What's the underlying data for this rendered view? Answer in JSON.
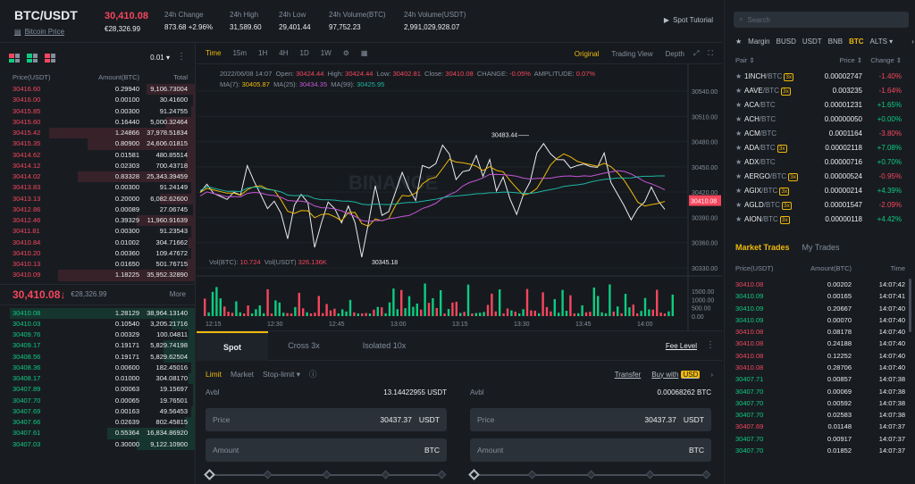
{
  "header": {
    "pair": "BTC/USDT",
    "pair_link": "Bitcoin Price",
    "last_price": "30,410.08",
    "last_price_eur": "€28,326.99",
    "stats": [
      {
        "label": "24h Change",
        "value": "873.68 +2.96%",
        "color": "up"
      },
      {
        "label": "24h High",
        "value": "31,589.60",
        "color": ""
      },
      {
        "label": "24h Low",
        "value": "29,401.44",
        "color": ""
      },
      {
        "label": "24h Volume(BTC)",
        "value": "97,752.23",
        "color": ""
      },
      {
        "label": "24h Volume(USDT)",
        "value": "2,991,029,928.07",
        "color": ""
      }
    ],
    "tutorial": "Spot Tutorial"
  },
  "orderbook": {
    "precision": "0.01",
    "headers": [
      "Price(USDT)",
      "Amount(BTC)",
      "Total"
    ],
    "asks": [
      [
        "30416.60",
        "0.29940",
        "9,106.73004",
        0.25
      ],
      [
        "30416.00",
        "0.00100",
        "30.41600",
        0.01
      ],
      [
        "30415.85",
        "0.00300",
        "91.24755",
        0.02
      ],
      [
        "30415.60",
        "0.16440",
        "5,000.32464",
        0.15
      ],
      [
        "30415.42",
        "1.24866",
        "37,978.51834",
        0.75
      ],
      [
        "30415.35",
        "0.80900",
        "24,606.01815",
        0.55
      ],
      [
        "30414.62",
        "0.01581",
        "480.85514",
        0.04
      ],
      [
        "30414.12",
        "0.02303",
        "700.43718",
        0.05
      ],
      [
        "30414.02",
        "0.83328",
        "25,343.39459",
        0.6
      ],
      [
        "30413.83",
        "0.00300",
        "91.24149",
        0.02
      ],
      [
        "30413.13",
        "0.20000",
        "6,082.62600",
        0.18
      ],
      [
        "30412.86",
        "0.00089",
        "27.06745",
        0.01
      ],
      [
        "30412.46",
        "0.39329",
        "11,960.91639",
        0.3
      ],
      [
        "30411.81",
        "0.00300",
        "91.23543",
        0.02
      ],
      [
        "30410.84",
        "0.01002",
        "304.71662",
        0.03
      ],
      [
        "30410.20",
        "0.00360",
        "109.47672",
        0.02
      ],
      [
        "30410.13",
        "0.01650",
        "501.76715",
        0.04
      ],
      [
        "30410.09",
        "1.18225",
        "35,952.32890",
        0.7
      ]
    ],
    "mid_price": "30,410.08",
    "mid_arrow": "↓",
    "mid_eur": "€28,326.99",
    "more": "More",
    "bids": [
      [
        "30410.08",
        "1.28129",
        "38,964.13140",
        0.95
      ],
      [
        "30410.03",
        "0.10540",
        "3,205.21716",
        0.12
      ],
      [
        "30409.76",
        "0.00329",
        "100.04811",
        0.03
      ],
      [
        "30409.17",
        "0.19171",
        "5,829.74198",
        0.16
      ],
      [
        "30408.56",
        "0.19171",
        "5,829.62504",
        0.16
      ],
      [
        "30408.36",
        "0.00600",
        "182.45016",
        0.02
      ],
      [
        "30408.17",
        "0.01000",
        "304.08170",
        0.03
      ],
      [
        "30407.89",
        "0.00063",
        "19.15697",
        0.01
      ],
      [
        "30407.70",
        "0.00065",
        "19.76501",
        0.01
      ],
      [
        "30407.69",
        "0.00163",
        "49.56453",
        0.02
      ],
      [
        "30407.66",
        "0.02639",
        "802.45815",
        0.05
      ],
      [
        "30407.61",
        "0.55364",
        "16,834.86920",
        0.45
      ],
      [
        "30407.03",
        "0.30000",
        "9,122.10900",
        0.3
      ]
    ]
  },
  "chart": {
    "intervals": [
      "Time",
      "15m",
      "1H",
      "4H",
      "1D",
      "1W"
    ],
    "views": [
      "Original",
      "Trading View",
      "Depth"
    ],
    "ohlc": {
      "date": "2022/06/08 14:07",
      "open_label": "Open:",
      "open": "30424.44",
      "high_label": "High:",
      "high": "30424.44",
      "low_label": "Low:",
      "low": "30402.81",
      "close_label": "Close:",
      "close": "30410.08",
      "change_label": "CHANGE:",
      "change": "-0.05%",
      "amp_label": "AMPLITUDE:",
      "amp": "0.07%"
    },
    "ma": {
      "ma7_label": "MA(7):",
      "ma7": "30405.87",
      "ma25_label": "MA(25):",
      "ma25": "30434.35",
      "ma99_label": "MA(99):",
      "ma99": "30425.95"
    },
    "vol": {
      "btc_label": "Vol(BTC):",
      "btc": "10.724",
      "usdt_label": "Vol(USDT)",
      "usdt": "326.136K"
    },
    "price_axis": [
      "30540.00",
      "30510.00",
      "30480.00",
      "30450.00",
      "30420.00",
      "30390.00",
      "30360.00",
      "30330.00"
    ],
    "price_tag": "30410.08",
    "high_annotation": "30483.44",
    "low_annotation": "30345.18",
    "watermark": "BINANCE",
    "vol_axis": [
      "1500.00",
      "1000.00",
      "500.00",
      "0.00"
    ],
    "time_axis": [
      "12:15",
      "12:30",
      "12:45",
      "13:00",
      "13:15",
      "13:30",
      "13:45",
      "14:00"
    ],
    "colors": {
      "ma7": "#f0b90b",
      "ma25": "#c455d6",
      "ma99": "#1fb5a5",
      "up": "#0ecb81",
      "down": "#f6465d"
    }
  },
  "trade": {
    "tabs": [
      "Spot",
      "Cross 3x",
      "Isolated 10x"
    ],
    "fee_level": "Fee Level",
    "order_types": [
      "Limit",
      "Market",
      "Stop-limit"
    ],
    "transfer": "Transfer",
    "buy_with": "Buy with",
    "buy_with_currency": "USD",
    "buy": {
      "avbl_label": "Avbl",
      "avbl": "13.14422955 USDT",
      "price_label": "Price",
      "price": "30437.37",
      "price_unit": "USDT",
      "amount_label": "Amount",
      "amount_unit": "BTC"
    },
    "sell": {
      "avbl_label": "Avbl",
      "avbl": "0.00068262 BTC",
      "price_label": "Price",
      "price": "30437.37",
      "price_unit": "USDT",
      "amount_label": "Amount",
      "amount_unit": "BTC"
    }
  },
  "markets": {
    "search_placeholder": "Search",
    "tabs": [
      "Margin",
      "BUSD",
      "USDT",
      "BNB",
      "BTC",
      "ALTS ▾"
    ],
    "active_tab": "BTC",
    "headers": [
      "Pair",
      "Price",
      "Change"
    ],
    "rows": [
      {
        "base": "1INCH",
        "quote": "/BTC",
        "lev": "3x",
        "price": "0.00002747",
        "change": "-1.40%",
        "dir": "down",
        "pcolor": ""
      },
      {
        "base": "AAVE",
        "quote": "/BTC",
        "lev": "3x",
        "price": "0.003235",
        "change": "-1.64%",
        "dir": "down",
        "pcolor": ""
      },
      {
        "base": "ACA",
        "quote": "/BTC",
        "lev": "",
        "price": "0.00001231",
        "change": "+1.65%",
        "dir": "up",
        "pcolor": ""
      },
      {
        "base": "ACH",
        "quote": "/BTC",
        "lev": "",
        "price": "0.00000050",
        "change": "+0.00%",
        "dir": "up",
        "pcolor": ""
      },
      {
        "base": "ACM",
        "quote": "/BTC",
        "lev": "",
        "price": "0.0001164",
        "change": "-3.80%",
        "dir": "down",
        "pcolor": ""
      },
      {
        "base": "ADA",
        "quote": "/BTC",
        "lev": "3x",
        "price": "0.00002118",
        "change": "+7.08%",
        "dir": "up",
        "pcolor": "up"
      },
      {
        "base": "ADX",
        "quote": "/BTC",
        "lev": "",
        "price": "0.00000716",
        "change": "+0.70%",
        "dir": "up",
        "pcolor": ""
      },
      {
        "base": "AERGO",
        "quote": "/BTC",
        "lev": "3x",
        "price": "0.00000524",
        "change": "-0.95%",
        "dir": "down",
        "pcolor": ""
      },
      {
        "base": "AGIX",
        "quote": "/BTC",
        "lev": "3x",
        "price": "0.00000214",
        "change": "+4.39%",
        "dir": "up",
        "pcolor": ""
      },
      {
        "base": "AGLD",
        "quote": "/BTC",
        "lev": "3x",
        "price": "0.00001547",
        "change": "-2.09%",
        "dir": "down",
        "pcolor": ""
      },
      {
        "base": "AION",
        "quote": "/BTC",
        "lev": "3x",
        "price": "0.00000118",
        "change": "+4.42%",
        "dir": "up",
        "pcolor": ""
      }
    ],
    "trades_tabs": [
      "Market Trades",
      "My Trades"
    ],
    "trades_headers": [
      "Price(USDT)",
      "Amount(BTC)",
      "Time"
    ],
    "trades": [
      [
        "30410.08",
        "0.00202",
        "14:07:42",
        "down"
      ],
      [
        "30410.09",
        "0.00165",
        "14:07:41",
        "up"
      ],
      [
        "30410.09",
        "0.20667",
        "14:07:40",
        "up"
      ],
      [
        "30410.09",
        "0.00070",
        "14:07:40",
        "up"
      ],
      [
        "30410.08",
        "0.08178",
        "14:07:40",
        "down"
      ],
      [
        "30410.08",
        "0.24188",
        "14:07:40",
        "down"
      ],
      [
        "30410.08",
        "0.12252",
        "14:07:40",
        "down"
      ],
      [
        "30410.08",
        "0.28706",
        "14:07:40",
        "down"
      ],
      [
        "30407.71",
        "0.00857",
        "14:07:38",
        "up"
      ],
      [
        "30407.70",
        "0.00069",
        "14:07:38",
        "up"
      ],
      [
        "30407.70",
        "0.00592",
        "14:07:38",
        "up"
      ],
      [
        "30407.70",
        "0.02583",
        "14:07:38",
        "up"
      ],
      [
        "30407.69",
        "0.01148",
        "14:07:37",
        "down"
      ],
      [
        "30407.70",
        "0.00917",
        "14:07:37",
        "up"
      ],
      [
        "30407.70",
        "0.01852",
        "14:07:37",
        "up"
      ]
    ]
  }
}
